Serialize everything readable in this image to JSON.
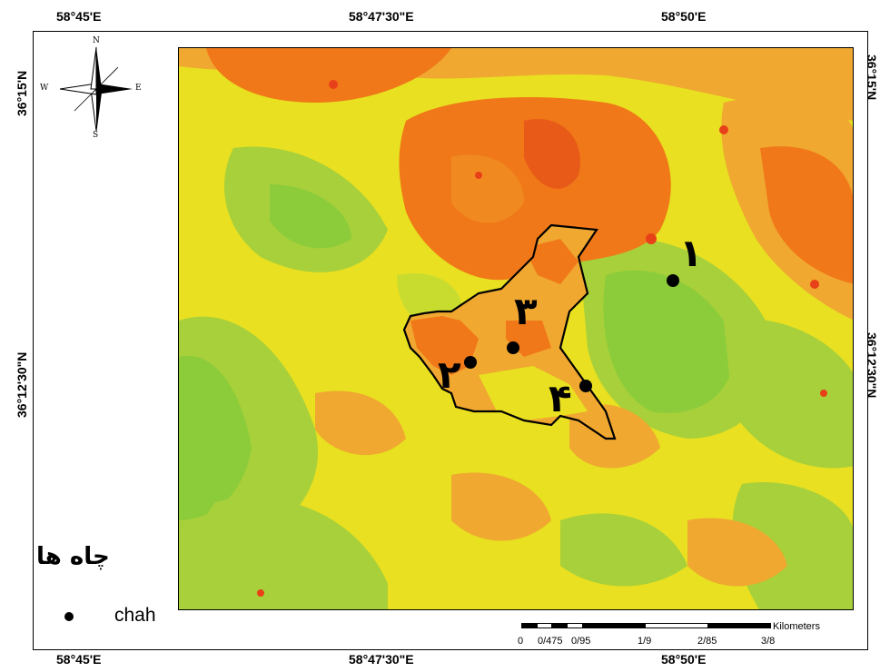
{
  "coordinates": {
    "top_labels": [
      "58°45'E",
      "58°47'30\"E",
      "58°50'E"
    ],
    "bottom_labels": [
      "58°45'E",
      "58°47'30\"E",
      "58°50'E"
    ],
    "left_labels": [
      "36°15'N",
      "36°12'30\"N"
    ],
    "right_labels": [
      "36°15'N",
      "36°12'30\"N"
    ]
  },
  "compass": {
    "n": "N",
    "s": "S",
    "e": "E",
    "w": "W"
  },
  "legend": {
    "title": "چاه ها",
    "item_label": "chah"
  },
  "scalebar": {
    "unit": "Kilometers",
    "ticks": [
      "0",
      "0/475",
      "0/95",
      "1/9",
      "2/85",
      "3/8"
    ]
  },
  "wells": [
    {
      "number": "١"
    },
    {
      "number": "٢"
    },
    {
      "number": "٣"
    },
    {
      "number": "۴"
    }
  ],
  "colors": {
    "green": "#8ccc3a",
    "yellow": "#e8e020",
    "light_orange": "#f0a830",
    "orange": "#f07818",
    "red": "#e84018"
  }
}
